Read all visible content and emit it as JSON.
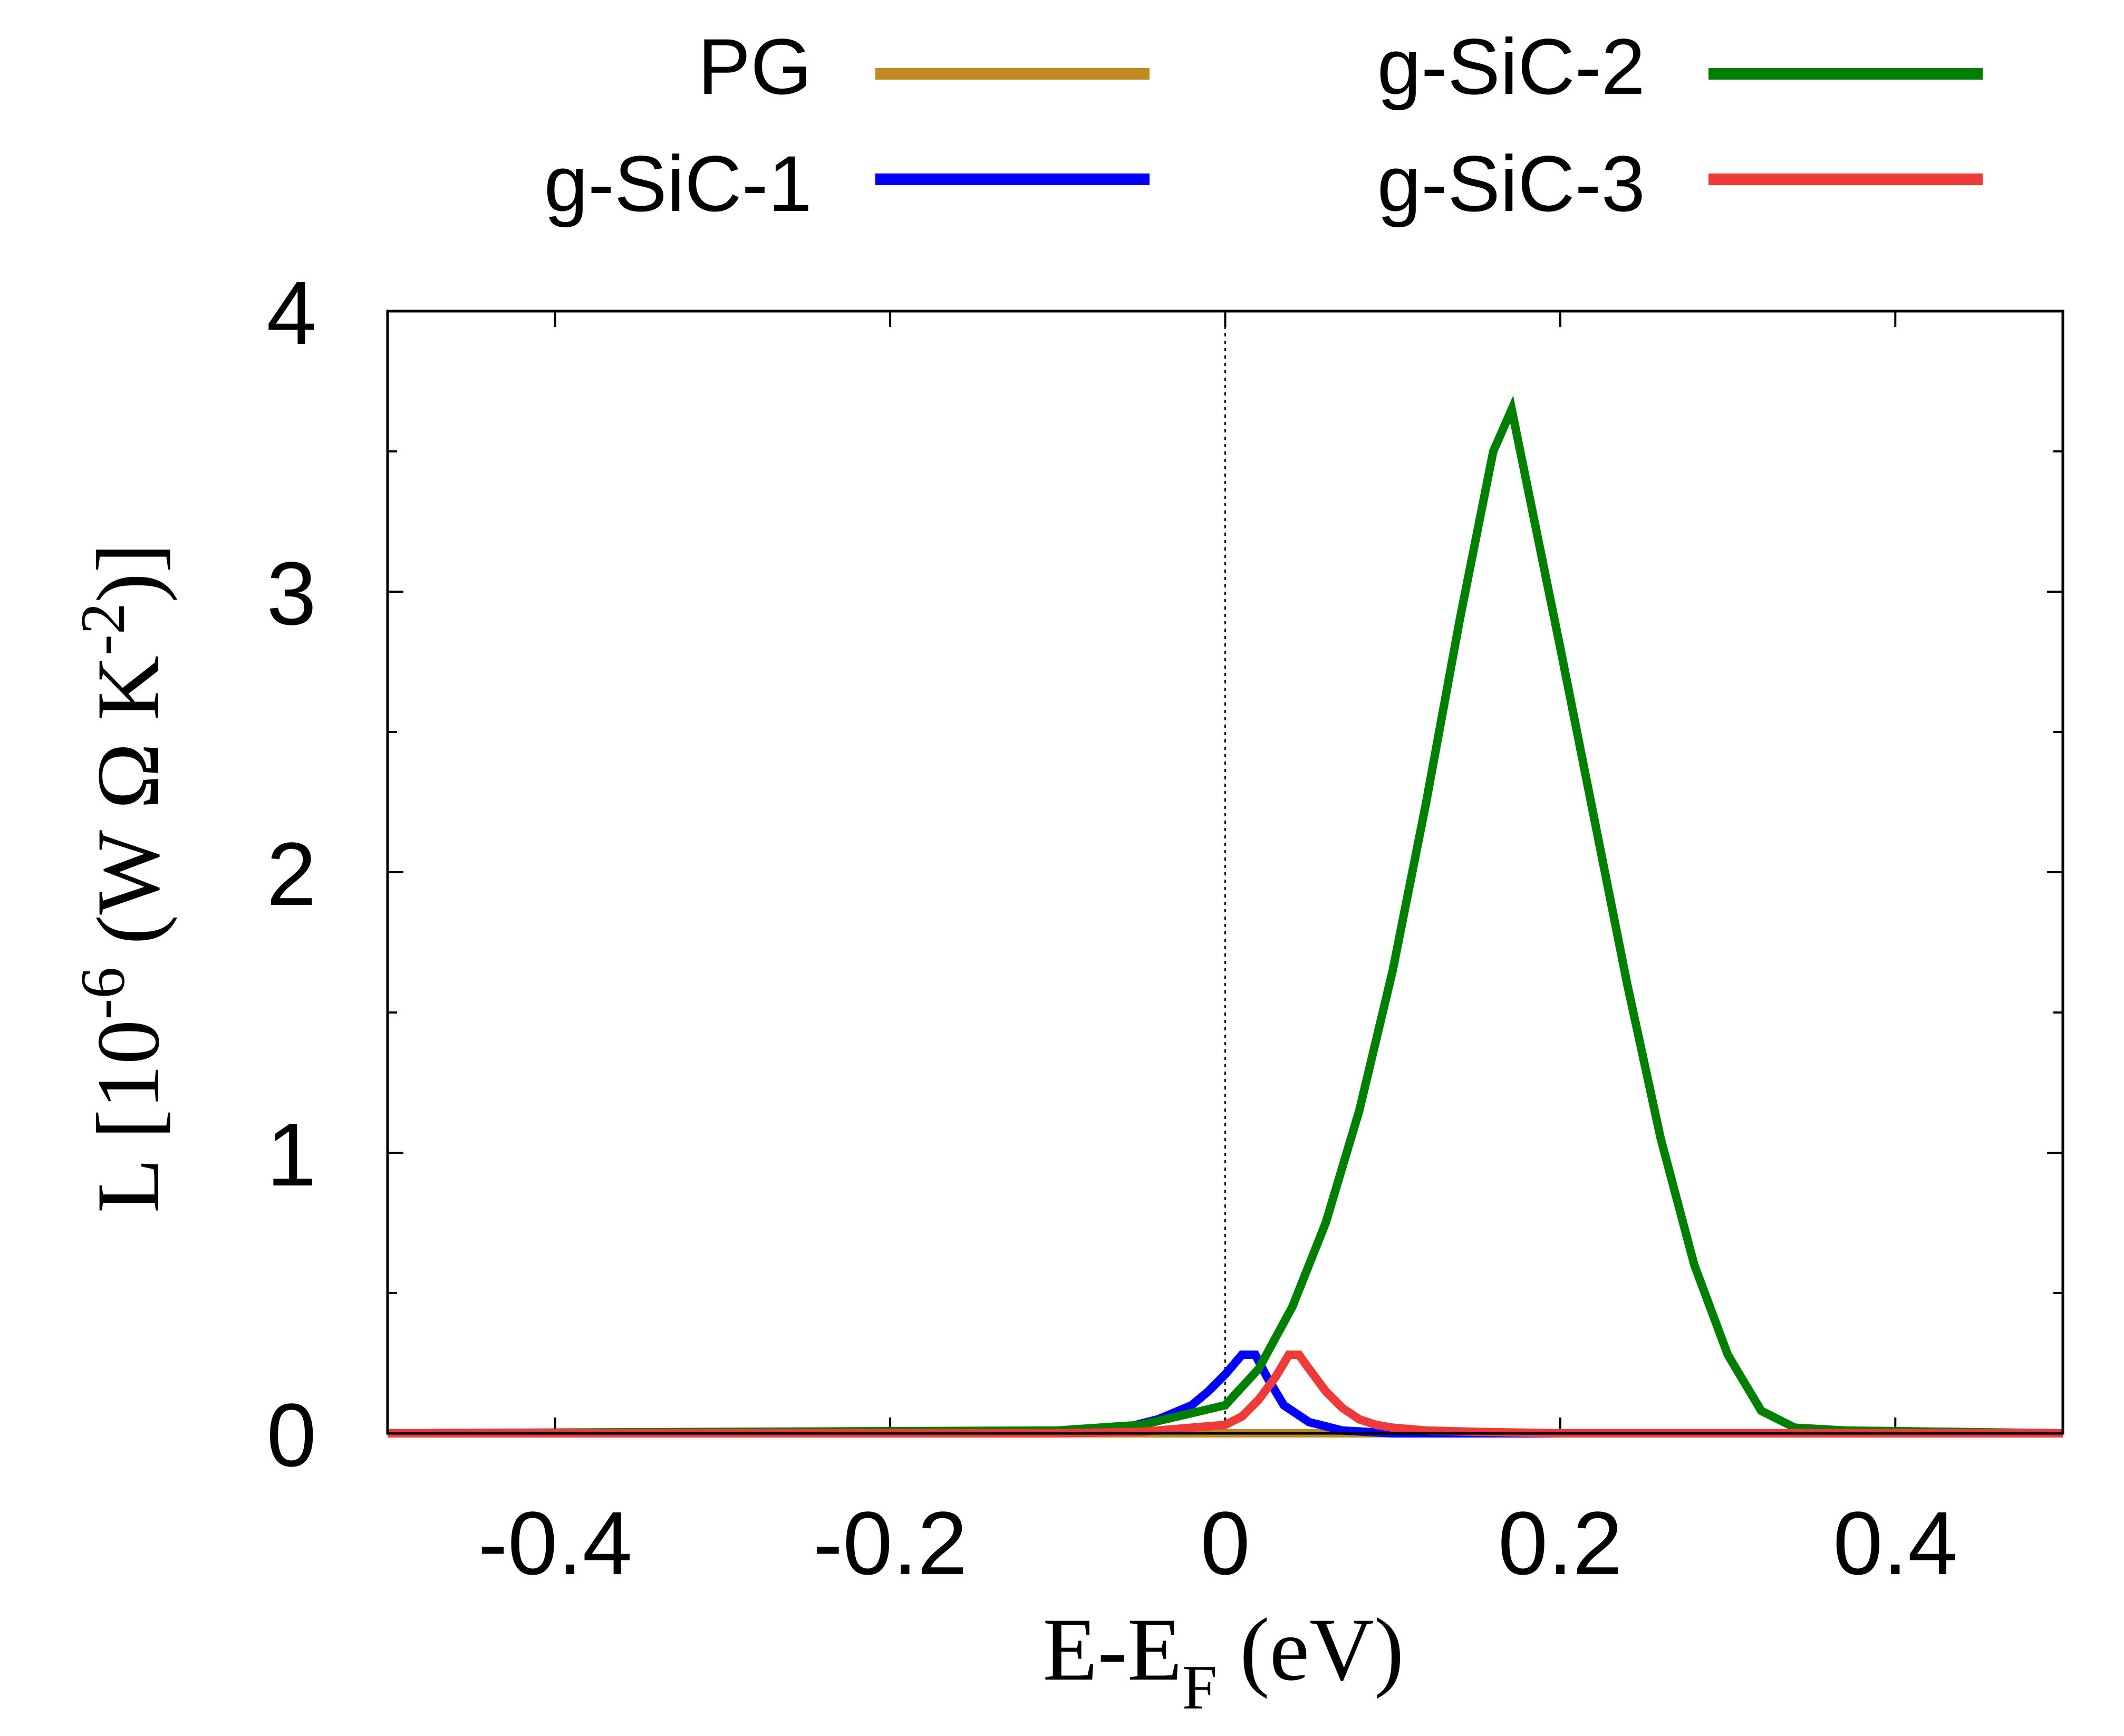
{
  "chart_data": {
    "type": "line",
    "title": "",
    "xlabel": "E-E",
    "xlabel_sub": "F",
    "xlabel_unit": "(eV)",
    "ylabel_parts": {
      "prefix": "L [10",
      "exp1": "-6",
      "middle": " (W Ω K",
      "exp2": "-2",
      "suffix": ")]"
    },
    "xlim": [
      -0.5,
      0.5
    ],
    "ylim": [
      0,
      4
    ],
    "xticks": [
      -0.4,
      -0.2,
      0,
      0.2,
      0.4
    ],
    "xtick_labels": [
      "-0.4",
      "-0.2",
      "0",
      "0.2",
      "0.4"
    ],
    "yticks": [
      0,
      1,
      2,
      3,
      4
    ],
    "ytick_labels": [
      "0",
      "1",
      "2",
      "3",
      "4"
    ],
    "yminor": [
      0.5,
      1.5,
      2.5,
      3.5
    ],
    "fermi_line_x": 0,
    "grid": false,
    "legend_position": "top, two columns above plot",
    "series": [
      {
        "name": "PG",
        "color": "#c08a1e",
        "x": [
          -0.5,
          0.5
        ],
        "y": [
          0.0,
          0.0
        ]
      },
      {
        "name": "g-SiC-1",
        "color": "#0000ff",
        "x": [
          -0.5,
          -0.2,
          -0.1,
          -0.06,
          -0.04,
          -0.02,
          -0.01,
          0.0,
          0.01,
          0.018,
          0.025,
          0.035,
          0.05,
          0.07,
          0.1,
          0.15,
          0.5
        ],
        "y": [
          0.0,
          0.0,
          0.005,
          0.02,
          0.05,
          0.1,
          0.15,
          0.21,
          0.28,
          0.28,
          0.2,
          0.1,
          0.04,
          0.01,
          0.0,
          0.0,
          0.0
        ]
      },
      {
        "name": "g-SiC-2",
        "color": "#008000",
        "x": [
          -0.5,
          -0.1,
          -0.05,
          0.0,
          0.02,
          0.04,
          0.06,
          0.08,
          0.1,
          0.12,
          0.14,
          0.16,
          0.171,
          0.2,
          0.22,
          0.24,
          0.26,
          0.28,
          0.3,
          0.32,
          0.34,
          0.37,
          0.5
        ],
        "y": [
          0.0,
          0.01,
          0.03,
          0.1,
          0.23,
          0.45,
          0.75,
          1.15,
          1.65,
          2.25,
          2.9,
          3.5,
          3.65,
          2.8,
          2.2,
          1.6,
          1.05,
          0.6,
          0.28,
          0.08,
          0.02,
          0.01,
          0.0
        ]
      },
      {
        "name": "g-SiC-3",
        "color": "#f03a3a",
        "x": [
          -0.5,
          -0.1,
          -0.05,
          0.0,
          0.01,
          0.02,
          0.03,
          0.038,
          0.044,
          0.05,
          0.06,
          0.07,
          0.08,
          0.09,
          0.1,
          0.12,
          0.15,
          0.2,
          0.5
        ],
        "y": [
          0.0,
          0.0,
          0.005,
          0.03,
          0.06,
          0.12,
          0.2,
          0.28,
          0.28,
          0.23,
          0.15,
          0.09,
          0.05,
          0.03,
          0.02,
          0.01,
          0.005,
          0.0,
          0.0
        ]
      }
    ]
  }
}
